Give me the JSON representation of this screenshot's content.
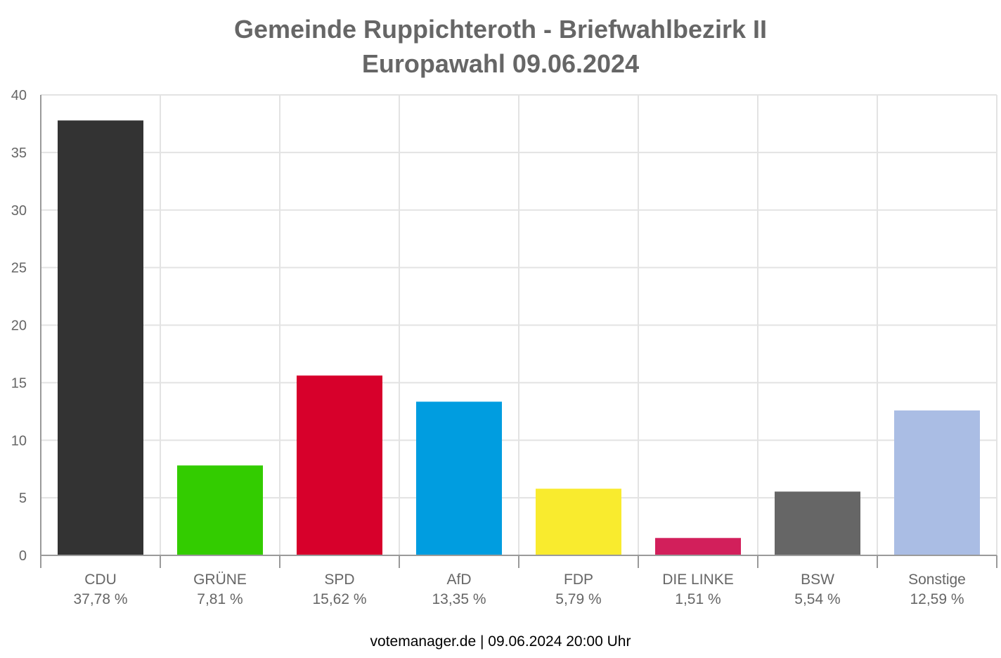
{
  "title": {
    "line1": "Gemeinde Ruppichteroth - Briefwahlbezirk II",
    "line2": "Europawahl 09.06.2024"
  },
  "footer": "votemanager.de | 09.06.2024 20:00 Uhr",
  "chart_data": {
    "type": "bar",
    "title": "Gemeinde Ruppichteroth - Briefwahlbezirk II\nEuropawahl 09.06.2024",
    "xlabel": "",
    "ylabel": "",
    "ylim": [
      0,
      40
    ],
    "yticks": [
      0,
      5,
      10,
      15,
      20,
      25,
      30,
      35,
      40
    ],
    "grid": true,
    "legend": "none",
    "categories": [
      "CDU",
      "GRÜNE",
      "SPD",
      "AfD",
      "FDP",
      "DIE LINKE",
      "BSW",
      "Sonstige"
    ],
    "value_labels": [
      "37,78 %",
      "7,81 %",
      "15,62 %",
      "13,35 %",
      "5,79 %",
      "1,51 %",
      "5,54 %",
      "12,59 %"
    ],
    "values": [
      37.78,
      7.81,
      15.62,
      13.35,
      5.79,
      1.51,
      5.54,
      12.59
    ],
    "colors": [
      "#333333",
      "#33cc00",
      "#d7002b",
      "#009de0",
      "#f9eb2e",
      "#d21f5b",
      "#666666",
      "#aabde4"
    ]
  }
}
